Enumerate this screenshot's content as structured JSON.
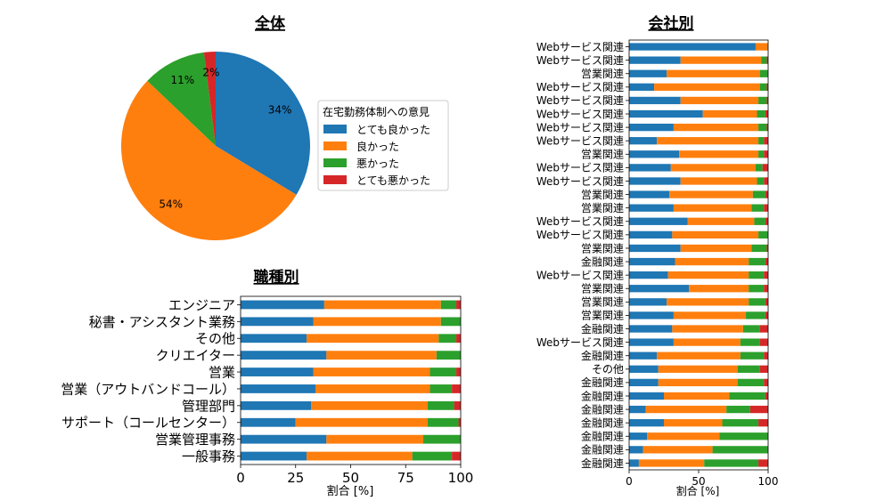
{
  "colors": {
    "very_good": "#1f77b4",
    "good": "#ff7f0e",
    "bad": "#2ca02c",
    "very_bad": "#d62728"
  },
  "legend": {
    "title": "在宅勤務体制への意見",
    "entries": [
      "とても良かった",
      "良かった",
      "悪かった",
      "とても悪かった"
    ]
  },
  "chart_data": [
    {
      "type": "pie",
      "title": "全体",
      "labels": [
        "とても良かった",
        "良かった",
        "悪かった",
        "とても悪かった"
      ],
      "values": [
        34,
        54,
        11,
        2
      ],
      "value_labels": [
        "34%",
        "54%",
        "11%",
        "2%"
      ],
      "start_angle_deg": 90,
      "direction": "clockwise"
    },
    {
      "type": "bar",
      "orientation": "horizontal",
      "stacked": true,
      "title": "職種別",
      "xlabel": "割合 [%]",
      "xlim": [
        0,
        100
      ],
      "xticks": [
        0,
        25,
        50,
        75,
        100
      ],
      "categories": [
        "エンジニア",
        "秘書・アシスタント業務",
        "その他",
        "クリエイター",
        "営業",
        "営業（アウトバンドコール）",
        "管理部門",
        "サポート（コールセンター）",
        "営業管理事務",
        "一般事務"
      ],
      "series": [
        {
          "name": "とても良かった",
          "values": [
            38,
            33,
            30,
            39,
            33,
            34,
            32,
            25,
            39,
            30
          ]
        },
        {
          "name": "良かった",
          "values": [
            53,
            58,
            60,
            50,
            53,
            52,
            53,
            60,
            44,
            48
          ]
        },
        {
          "name": "悪かった",
          "values": [
            7,
            9,
            8,
            11,
            12,
            10,
            12,
            14,
            17,
            18
          ]
        },
        {
          "name": "とても悪かった",
          "values": [
            2,
            0,
            2,
            0,
            2,
            4,
            3,
            1,
            0,
            4
          ]
        }
      ]
    },
    {
      "type": "bar",
      "orientation": "horizontal",
      "stacked": true,
      "title": "会社別",
      "xlabel": "割合 [%]",
      "xlim": [
        0,
        100
      ],
      "xticks": [
        0,
        50,
        100
      ],
      "categories": [
        "Webサービス関連",
        "Webサービス関連",
        "営業関連",
        "Webサービス関連",
        "Webサービス関連",
        "Webサービス関連",
        "Webサービス関連",
        "Webサービス関連",
        "営業関連",
        "Webサービス関連",
        "Webサービス関連",
        "営業関連",
        "営業関連",
        "Webサービス関連",
        "Webサービス関連",
        "営業関連",
        "金融関連",
        "Webサービス関連",
        "営業関連",
        "営業関連",
        "営業関連",
        "金融関連",
        "Webサービス関連",
        "金融関連",
        "その他",
        "金融関連",
        "金融関連",
        "金融関連",
        "金融関連",
        "金融関連",
        "金融関連",
        "金融関連"
      ],
      "series": [
        {
          "name": "とても良かった",
          "values": [
            91,
            37,
            27,
            18,
            37,
            53,
            32,
            20,
            36,
            30,
            37,
            29,
            32,
            42,
            31,
            37,
            33,
            28,
            43,
            27,
            32,
            31,
            32,
            20,
            21,
            21,
            25,
            12,
            25,
            13,
            10,
            7
          ]
        },
        {
          "name": "良かった",
          "values": [
            9,
            58,
            67,
            76,
            56,
            39,
            61,
            73,
            57,
            61,
            55,
            60,
            56,
            48,
            62,
            51,
            53,
            58,
            43,
            59,
            52,
            51,
            48,
            60,
            57,
            57,
            47,
            58,
            42,
            52,
            50,
            47
          ]
        },
        {
          "name": "悪かった",
          "values": [
            0,
            4,
            6,
            5,
            6,
            6,
            6,
            4,
            4,
            5,
            5,
            9,
            9,
            8,
            7,
            11,
            12,
            11,
            11,
            12,
            14,
            12,
            14,
            17,
            16,
            19,
            26,
            17,
            26,
            35,
            40,
            39
          ]
        },
        {
          "name": "とても悪かった",
          "values": [
            0,
            1,
            0,
            1,
            1,
            2,
            1,
            3,
            3,
            4,
            3,
            2,
            3,
            2,
            0,
            1,
            2,
            3,
            3,
            2,
            2,
            6,
            6,
            3,
            6,
            3,
            2,
            13,
            7,
            0,
            0,
            7
          ]
        }
      ]
    }
  ]
}
